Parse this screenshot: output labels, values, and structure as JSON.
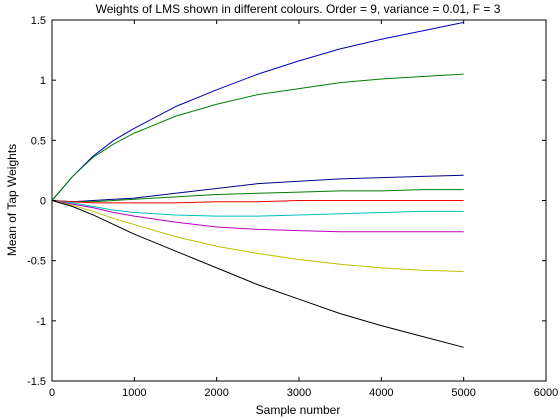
{
  "chart_data": {
    "type": "line",
    "title": "Weights of LMS shown in different colours. Order = 9, variance = 0.01, F = 3",
    "xlabel": "Sample number",
    "ylabel": "Mean of Tap Weights",
    "xlim": [
      0,
      6000
    ],
    "ylim": [
      -1.5,
      1.5
    ],
    "xticks": [
      "0",
      "1000",
      "2000",
      "3000",
      "4000",
      "5000",
      "6000"
    ],
    "yticks": [
      "-1.5",
      "-1",
      "-0.5",
      "0",
      "0.5",
      "1",
      "1.5"
    ],
    "x": [
      0,
      250,
      500,
      750,
      1000,
      1500,
      2000,
      2500,
      3000,
      3500,
      4000,
      4500,
      5000
    ],
    "grid": false,
    "series": [
      {
        "color": "#0000bf",
        "values": [
          0,
          0.2,
          0.37,
          0.5,
          0.6,
          0.78,
          0.92,
          1.05,
          1.16,
          1.26,
          1.34,
          1.41,
          1.48
        ]
      },
      {
        "color": "#008000",
        "values": [
          0,
          0.2,
          0.36,
          0.47,
          0.56,
          0.7,
          0.8,
          0.88,
          0.93,
          0.98,
          1.01,
          1.03,
          1.05
        ]
      },
      {
        "color": "#00008b",
        "values": [
          0,
          -0.01,
          0.0,
          0.01,
          0.02,
          0.06,
          0.1,
          0.14,
          0.16,
          0.18,
          0.19,
          0.2,
          0.21
        ]
      },
      {
        "color": "#007f00",
        "values": [
          0,
          -0.01,
          -0.01,
          0.0,
          0.01,
          0.03,
          0.05,
          0.06,
          0.07,
          0.08,
          0.08,
          0.09,
          0.09
        ]
      },
      {
        "color": "#ff0000",
        "values": [
          0,
          -0.01,
          -0.02,
          -0.02,
          -0.02,
          -0.02,
          -0.01,
          -0.01,
          0.0,
          0.0,
          0.0,
          0.0,
          0.0
        ]
      },
      {
        "color": "#00bfbf",
        "values": [
          0,
          -0.02,
          -0.05,
          -0.08,
          -0.1,
          -0.12,
          -0.13,
          -0.13,
          -0.12,
          -0.11,
          -0.1,
          -0.09,
          -0.09
        ]
      },
      {
        "color": "#bf00bf",
        "values": [
          0,
          -0.03,
          -0.06,
          -0.1,
          -0.13,
          -0.18,
          -0.22,
          -0.24,
          -0.25,
          -0.26,
          -0.26,
          -0.26,
          -0.26
        ]
      },
      {
        "color": "#bfbf00",
        "values": [
          0,
          -0.04,
          -0.09,
          -0.15,
          -0.2,
          -0.3,
          -0.38,
          -0.44,
          -0.49,
          -0.53,
          -0.56,
          -0.58,
          -0.59
        ]
      },
      {
        "color": "#000000",
        "values": [
          0,
          -0.05,
          -0.12,
          -0.2,
          -0.28,
          -0.42,
          -0.56,
          -0.7,
          -0.82,
          -0.94,
          -1.04,
          -1.13,
          -1.22
        ]
      }
    ]
  }
}
